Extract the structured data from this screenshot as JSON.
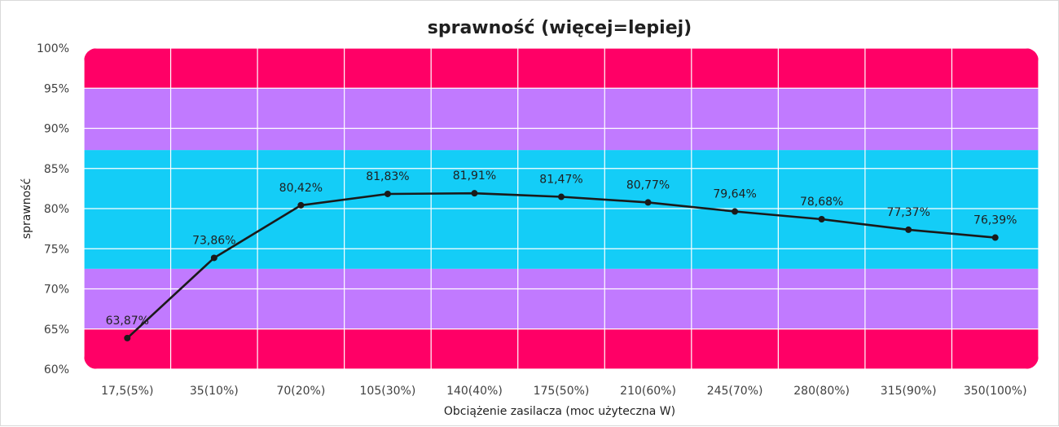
{
  "chart_data": {
    "type": "line",
    "title": "sprawność (więcej=lepiej)",
    "xlabel": "Obciążenie zasilacza (moc użyteczna W)",
    "ylabel": "sprawność",
    "categories": [
      "17,5(5%)",
      "35(10%)",
      "70(20%)",
      "105(30%)",
      "140(40%)",
      "175(50%)",
      "210(60%)",
      "245(70%)",
      "280(80%)",
      "315(90%)",
      "350(100%)"
    ],
    "series": [
      {
        "values": [
          63.87,
          73.86,
          80.42,
          81.83,
          81.91,
          81.47,
          80.77,
          79.64,
          78.68,
          77.37,
          76.39
        ],
        "data_labels": [
          "63,87%",
          "73,86%",
          "80,42%",
          "81,83%",
          "81,91%",
          "81,47%",
          "80,77%",
          "79,64%",
          "78,68%",
          "77,37%",
          "76,39%"
        ],
        "color": "#1a1a1a"
      }
    ],
    "ylim": [
      60,
      100
    ],
    "yticks": [
      60,
      65,
      70,
      75,
      80,
      85,
      90,
      95,
      100
    ],
    "ytick_labels": [
      "60%",
      "65%",
      "70%",
      "75%",
      "80%",
      "85%",
      "90%",
      "95%",
      "100%"
    ],
    "grid": true,
    "bands": [
      {
        "from": 60,
        "to": 65,
        "color": "#ff0066"
      },
      {
        "from": 65,
        "to": 72.5,
        "color": "#c17aff"
      },
      {
        "from": 72.5,
        "to": 87.3,
        "color": "#14cdf7"
      },
      {
        "from": 87.3,
        "to": 95,
        "color": "#c17aff"
      },
      {
        "from": 95,
        "to": 100,
        "color": "#ff0066"
      }
    ]
  }
}
